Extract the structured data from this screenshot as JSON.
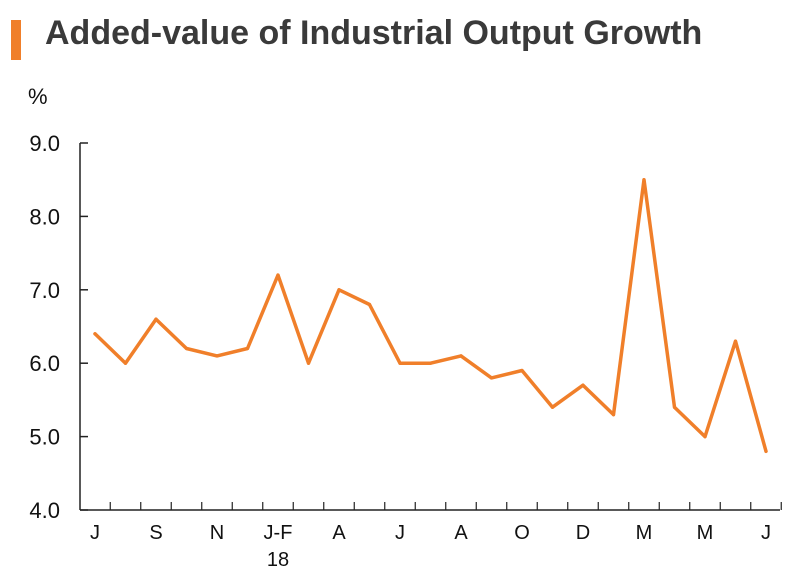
{
  "title": "Added-value of Industrial Output Growth",
  "colors": {
    "accent": "#f07f2a",
    "line": "#f07f2a",
    "axis": "#222222",
    "title": "#3a3a3a"
  },
  "chart_data": {
    "type": "line",
    "title": "Added-value of Industrial Output Growth",
    "ylabel": "%",
    "xlabel": "",
    "ylim": [
      4.0,
      9.0
    ],
    "yticks": [
      "9.0",
      "8.0",
      "7.0",
      "6.0",
      "5.0",
      "4.0"
    ],
    "ytick_values": [
      9.0,
      8.0,
      7.0,
      6.0,
      5.0,
      4.0
    ],
    "x_tick_labels": [
      {
        "label": "J",
        "index": 0
      },
      {
        "label": "S",
        "index": 2
      },
      {
        "label": "N",
        "index": 4
      },
      {
        "label": "J-F",
        "index": 6
      },
      {
        "label": "A",
        "index": 8
      },
      {
        "label": "J",
        "index": 10
      },
      {
        "label": "A",
        "index": 12
      },
      {
        "label": "O",
        "index": 14
      },
      {
        "label": "D",
        "index": 16
      },
      {
        "label": "M",
        "index": 18
      },
      {
        "label": "M",
        "index": 20
      },
      {
        "label": "J",
        "index": 22
      }
    ],
    "year_label": {
      "label": "18",
      "index": 6
    },
    "series": [
      {
        "values": [
          6.4,
          6.0,
          6.6,
          6.2,
          6.1,
          6.2,
          7.2,
          6.0,
          7.0,
          6.8,
          6.0,
          6.0,
          6.1,
          5.8,
          5.9,
          5.4,
          5.7,
          5.3,
          8.5,
          5.4,
          5.0,
          6.3,
          4.8
        ]
      }
    ],
    "grid": false,
    "legend": "none"
  }
}
